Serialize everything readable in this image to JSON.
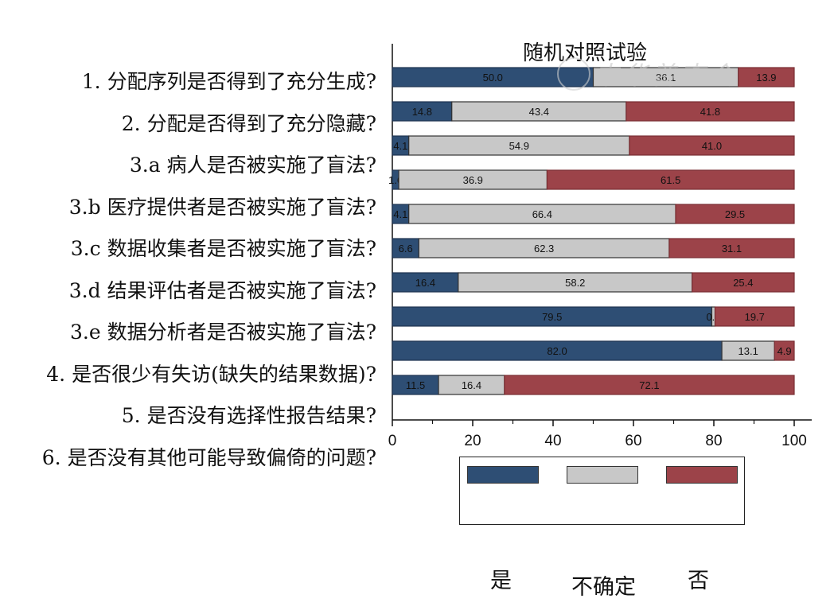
{
  "chart_data": {
    "type": "bar",
    "stacked": true,
    "orientation": "horizontal",
    "title": "随机对照试验",
    "xlim": [
      0,
      100
    ],
    "xticks": [
      0,
      20,
      40,
      60,
      80,
      100
    ],
    "categories": [
      "1. 分配序列是否得到了充分生成?",
      "2. 分配是否得到了充分隐藏?",
      "3.a 病人是否被实施了盲法?",
      "3.b 医疗提供者是否被实施了盲法?",
      "3.c 数据收集者是否被实施了盲法?",
      "3.d 结果评估者是否被实施了盲法?",
      "3.e 数据分析者是否被实施了盲法?",
      "4. 是否很少有失访(缺失的结果数据)?",
      "5. 是否没有选择性报告结果?",
      "6. 是否没有其他可能导致偏倚的问题?"
    ],
    "series": [
      {
        "name": "是",
        "color": "#2e4e74",
        "values": [
          50.0,
          14.8,
          4.1,
          1.6,
          4.1,
          6.6,
          16.4,
          79.5,
          82.0,
          11.5
        ]
      },
      {
        "name": "不确定",
        "color": "#c8c8c8",
        "values": [
          36.1,
          43.4,
          54.9,
          36.9,
          66.4,
          62.3,
          58.2,
          0.8,
          13.1,
          16.4
        ]
      },
      {
        "name": "否",
        "color": "#9c4349",
        "values": [
          13.9,
          41.8,
          41.0,
          61.5,
          29.5,
          31.1,
          25.4,
          19.7,
          4.9,
          72.1
        ]
      }
    ],
    "legend": "bottom",
    "grid": false
  },
  "watermark": "中华普查会"
}
